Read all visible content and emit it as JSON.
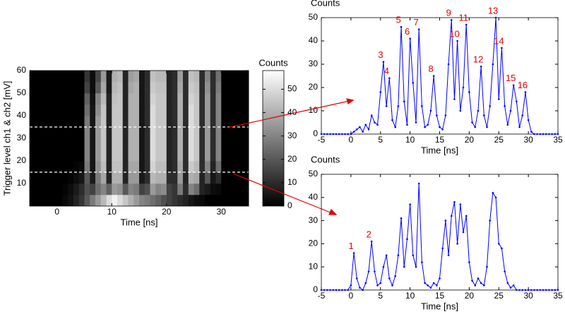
{
  "chart_data": [
    {
      "type": "heatmap",
      "xlabel": "Time [ns]",
      "ylabel": "Trigger level ch1 & ch2 [mV]",
      "xlim": [
        -5,
        35
      ],
      "xticks": [
        0,
        10,
        20,
        30
      ],
      "ylim": [
        0,
        60
      ],
      "yticks": [
        10,
        20,
        30,
        40,
        50,
        60
      ],
      "x": [
        -4.5,
        -3.5,
        -2.5,
        -1.5,
        -0.5,
        0.5,
        1.5,
        2.5,
        3.5,
        4.5,
        5.5,
        6.5,
        7.5,
        8.5,
        9.5,
        10.5,
        11.5,
        12.5,
        13.5,
        14.5,
        15.5,
        16.5,
        17.5,
        18.5,
        19.5,
        20.5,
        21.5,
        22.5,
        23.5,
        24.5,
        25.5,
        26.5,
        27.5,
        28.5,
        29.5,
        30.5,
        31.5,
        32.5,
        33.5,
        34.5
      ],
      "y": [
        2.5,
        7.5,
        12.5,
        17.5,
        22.5,
        27.5,
        32.5,
        37.5,
        42.5,
        47.5,
        52.5,
        57.5
      ],
      "values": [
        [
          0,
          0,
          0,
          0,
          0,
          0,
          2,
          4,
          8,
          12,
          20,
          28,
          35,
          42,
          50,
          55,
          50,
          45,
          40,
          35,
          30,
          28,
          25,
          22,
          18,
          15,
          12,
          10,
          8,
          5,
          3,
          2,
          0,
          0,
          0,
          0,
          0,
          0,
          0,
          0
        ],
        [
          0,
          0,
          0,
          0,
          0,
          0,
          1,
          3,
          6,
          10,
          18,
          15,
          25,
          30,
          22,
          35,
          33,
          20,
          30,
          28,
          15,
          18,
          35,
          30,
          32,
          15,
          12,
          28,
          10,
          30,
          25,
          8,
          6,
          3,
          2,
          0,
          0,
          0,
          0,
          0
        ],
        [
          0,
          0,
          0,
          0,
          0,
          0,
          0,
          1,
          3,
          5,
          20,
          6,
          28,
          38,
          8,
          40,
          40,
          8,
          35,
          35,
          6,
          10,
          42,
          40,
          40,
          10,
          10,
          35,
          8,
          40,
          38,
          8,
          20,
          5,
          10,
          0,
          0,
          0,
          0,
          0
        ],
        [
          0,
          0,
          0,
          0,
          0,
          0,
          0,
          0,
          1,
          2,
          28,
          5,
          33,
          43,
          8,
          44,
          44,
          8,
          38,
          38,
          5,
          10,
          48,
          43,
          43,
          8,
          10,
          38,
          10,
          46,
          42,
          10,
          30,
          8,
          25,
          0,
          0,
          0,
          0,
          0
        ],
        [
          0,
          0,
          0,
          0,
          0,
          0,
          0,
          0,
          0,
          0,
          30,
          5,
          35,
          45,
          8,
          45,
          45,
          8,
          40,
          40,
          5,
          10,
          50,
          45,
          45,
          8,
          10,
          40,
          10,
          50,
          45,
          10,
          35,
          10,
          30,
          0,
          0,
          0,
          0,
          0
        ],
        [
          0,
          0,
          0,
          0,
          0,
          0,
          0,
          0,
          0,
          0,
          30,
          5,
          35,
          45,
          8,
          45,
          45,
          8,
          40,
          40,
          5,
          10,
          50,
          45,
          45,
          8,
          10,
          40,
          10,
          50,
          45,
          10,
          35,
          10,
          30,
          0,
          0,
          0,
          0,
          0
        ],
        [
          0,
          0,
          0,
          0,
          0,
          0,
          0,
          0,
          0,
          0,
          30,
          5,
          35,
          45,
          8,
          45,
          45,
          8,
          40,
          40,
          5,
          10,
          50,
          45,
          45,
          8,
          10,
          40,
          10,
          50,
          45,
          10,
          35,
          10,
          30,
          0,
          0,
          0,
          0,
          0
        ],
        [
          0,
          0,
          0,
          0,
          0,
          0,
          0,
          0,
          0,
          0,
          28,
          5,
          35,
          45,
          8,
          45,
          45,
          8,
          40,
          40,
          5,
          10,
          50,
          45,
          45,
          8,
          10,
          40,
          10,
          50,
          45,
          10,
          35,
          10,
          30,
          0,
          0,
          0,
          0,
          0
        ],
        [
          0,
          0,
          0,
          0,
          0,
          0,
          0,
          0,
          0,
          0,
          25,
          5,
          32,
          45,
          8,
          45,
          45,
          8,
          40,
          40,
          5,
          10,
          50,
          45,
          45,
          8,
          10,
          40,
          10,
          50,
          45,
          10,
          35,
          10,
          30,
          0,
          0,
          0,
          0,
          0
        ],
        [
          0,
          0,
          0,
          0,
          0,
          0,
          0,
          0,
          0,
          0,
          22,
          4,
          30,
          42,
          8,
          44,
          45,
          8,
          40,
          40,
          5,
          10,
          48,
          45,
          45,
          8,
          10,
          40,
          10,
          48,
          45,
          10,
          35,
          10,
          30,
          0,
          0,
          0,
          0,
          0
        ],
        [
          0,
          0,
          0,
          0,
          0,
          0,
          0,
          0,
          0,
          0,
          15,
          3,
          20,
          38,
          6,
          42,
          44,
          8,
          38,
          40,
          5,
          10,
          46,
          44,
          44,
          8,
          10,
          38,
          10,
          46,
          44,
          10,
          33,
          10,
          28,
          0,
          0,
          0,
          0,
          0
        ],
        [
          0,
          0,
          0,
          0,
          0,
          0,
          0,
          0,
          0,
          0,
          12,
          3,
          16,
          35,
          6,
          40,
          42,
          8,
          36,
          38,
          5,
          10,
          44,
          42,
          42,
          8,
          10,
          36,
          10,
          44,
          42,
          10,
          30,
          10,
          26,
          0,
          0,
          0,
          0,
          0
        ]
      ],
      "colorbar": {
        "label": "Counts",
        "clim": [
          0,
          58
        ],
        "ticks": [
          0,
          10,
          20,
          30,
          40,
          50
        ]
      },
      "hlines": [
        35,
        15
      ],
      "hline_color": "#ffffff"
    },
    {
      "type": "line",
      "ylabel": "Counts",
      "xlabel": "Time [ns]",
      "color": "#0000ff",
      "xlim": [
        -5,
        35
      ],
      "xticks": [
        -5,
        0,
        5,
        10,
        15,
        20,
        25,
        30,
        35
      ],
      "ylim": [
        0,
        50
      ],
      "yticks": [
        0,
        10,
        20,
        30,
        40,
        50
      ],
      "x": [
        -5,
        -4.5,
        -4,
        -3.5,
        -3,
        -2.5,
        -2,
        -1.5,
        -1,
        -0.5,
        0,
        0.5,
        1,
        1.5,
        2,
        2.5,
        3,
        3.5,
        4,
        4.5,
        5,
        5.5,
        6,
        6.5,
        7,
        7.5,
        8,
        8.5,
        9,
        9.5,
        10,
        10.5,
        11,
        11.5,
        12,
        12.5,
        13,
        13.5,
        14,
        14.5,
        15,
        15.5,
        16,
        16.5,
        17,
        17.5,
        18,
        18.5,
        19,
        19.5,
        20,
        20.5,
        21,
        21.5,
        22,
        22.5,
        23,
        23.5,
        24,
        24.5,
        25,
        25.5,
        26,
        26.5,
        27,
        27.5,
        28,
        28.5,
        29,
        29.5,
        30,
        30.5,
        31,
        31.5,
        32,
        32.5,
        33,
        33.5,
        34,
        34.5,
        35
      ],
      "values": [
        0,
        0,
        0,
        0,
        0,
        0,
        0,
        0,
        0,
        0,
        0,
        1,
        2,
        3,
        1,
        4,
        2,
        8,
        5,
        4,
        18,
        31,
        12,
        24,
        6,
        3,
        12,
        46,
        14,
        4,
        41,
        22,
        5,
        45,
        12,
        3,
        4,
        10,
        25,
        8,
        3,
        2,
        8,
        30,
        49,
        15,
        40,
        10,
        20,
        47,
        18,
        5,
        3,
        10,
        29,
        8,
        3,
        12,
        30,
        50,
        15,
        37,
        12,
        4,
        10,
        21,
        14,
        3,
        8,
        18,
        6,
        1,
        0,
        0,
        0,
        0,
        0,
        0,
        0,
        0,
        0
      ],
      "annotations": [
        {
          "text": "3",
          "x": 5.5,
          "y": 31
        },
        {
          "text": "4",
          "x": 6.5,
          "y": 24
        },
        {
          "text": "5",
          "x": 8.5,
          "y": 46
        },
        {
          "text": "6",
          "x": 10,
          "y": 41
        },
        {
          "text": "7",
          "x": 11.5,
          "y": 45
        },
        {
          "text": "8",
          "x": 14,
          "y": 25
        },
        {
          "text": "9",
          "x": 17,
          "y": 49
        },
        {
          "text": "10",
          "x": 18,
          "y": 40
        },
        {
          "text": "11",
          "x": 19.5,
          "y": 47
        },
        {
          "text": "12",
          "x": 22,
          "y": 29
        },
        {
          "text": "13",
          "x": 24.5,
          "y": 50
        },
        {
          "text": "14",
          "x": 25.5,
          "y": 37
        },
        {
          "text": "15",
          "x": 27.5,
          "y": 21
        },
        {
          "text": "16",
          "x": 29.5,
          "y": 18
        }
      ]
    },
    {
      "type": "line",
      "ylabel": "Counts",
      "xlabel": "Time [ns]",
      "color": "#0000ff",
      "xlim": [
        -5,
        35
      ],
      "xticks": [
        -5,
        0,
        5,
        10,
        15,
        20,
        25,
        30,
        35
      ],
      "ylim": [
        0,
        50
      ],
      "yticks": [
        0,
        10,
        20,
        30,
        40,
        50
      ],
      "x": [
        -5,
        -4.5,
        -4,
        -3.5,
        -3,
        -2.5,
        -2,
        -1.5,
        -1,
        -0.5,
        0,
        0.5,
        1,
        1.5,
        2,
        2.5,
        3,
        3.5,
        4,
        4.5,
        5,
        5.5,
        6,
        6.5,
        7,
        7.5,
        8,
        8.5,
        9,
        9.5,
        10,
        10.5,
        11,
        11.5,
        12,
        12.5,
        13,
        13.5,
        14,
        14.5,
        15,
        15.5,
        16,
        16.5,
        17,
        17.5,
        18,
        18.5,
        19,
        19.5,
        20,
        20.5,
        21,
        21.5,
        22,
        22.5,
        23,
        23.5,
        24,
        24.5,
        25,
        25.5,
        26,
        26.5,
        27,
        27.5,
        28,
        28.5,
        29,
        29.5,
        30,
        30.5,
        31,
        31.5,
        32,
        32.5,
        33,
        33.5,
        34,
        34.5,
        35
      ],
      "values": [
        0,
        0,
        0,
        0,
        0,
        0,
        0,
        0,
        0,
        0,
        2,
        16,
        5,
        1,
        0,
        3,
        8,
        21,
        8,
        2,
        3,
        10,
        15,
        5,
        2,
        6,
        15,
        31,
        10,
        22,
        37,
        15,
        10,
        46,
        12,
        3,
        2,
        1,
        3,
        2,
        5,
        18,
        30,
        15,
        32,
        38,
        20,
        37,
        25,
        32,
        12,
        4,
        2,
        5,
        3,
        2,
        10,
        30,
        42,
        40,
        20,
        18,
        8,
        3,
        1,
        2,
        0,
        0,
        0,
        0,
        0,
        0,
        0,
        0,
        0,
        0,
        0,
        0,
        0,
        0,
        0
      ],
      "annotations": [
        {
          "text": "1",
          "x": 0.5,
          "y": 16
        },
        {
          "text": "2",
          "x": 3.5,
          "y": 21
        }
      ]
    }
  ]
}
